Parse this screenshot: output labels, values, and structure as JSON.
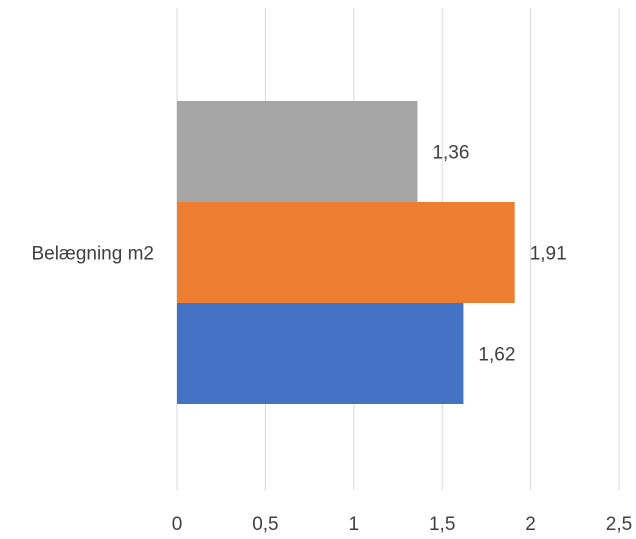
{
  "chart_data": {
    "type": "bar",
    "orientation": "horizontal",
    "categories": [
      "Belægning m2"
    ],
    "series": [
      {
        "values": [
          1.62
        ],
        "labels": [
          "1,62"
        ],
        "color": "#4472C4"
      },
      {
        "values": [
          1.91
        ],
        "labels": [
          "1,91"
        ],
        "color": "#ED7D31"
      },
      {
        "values": [
          1.36
        ],
        "labels": [
          "1,36"
        ],
        "color": "#A5A5A5"
      }
    ],
    "xlim": [
      0,
      2.5
    ],
    "xticks": [
      0,
      0.5,
      1,
      1.5,
      2,
      2.5
    ],
    "xtick_labels": [
      "0",
      "0,5",
      "1",
      "1,5",
      "2",
      "2,5"
    ],
    "grid": "vertical",
    "gridline_color": "#D9D9D9",
    "title": "",
    "xlabel": "",
    "ylabel": ""
  }
}
